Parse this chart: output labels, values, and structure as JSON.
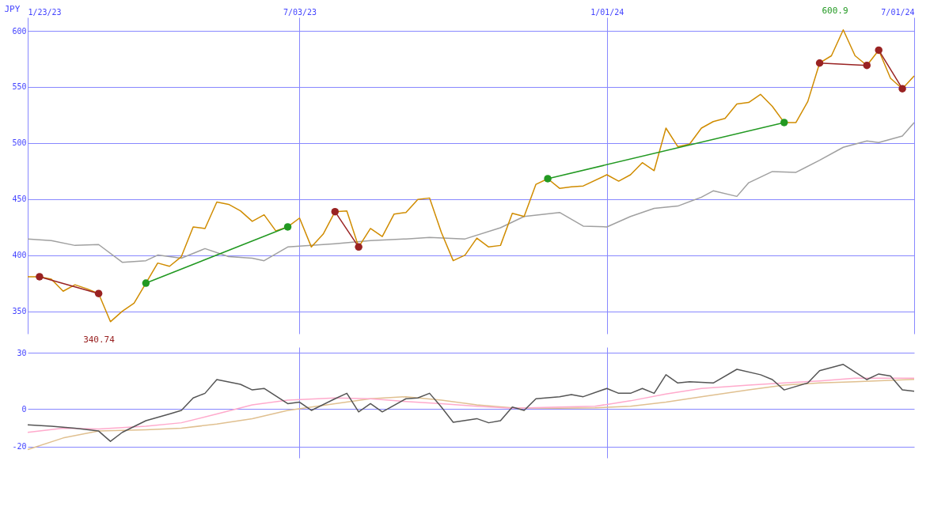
{
  "chart_data": [
    {
      "type": "line",
      "ylabel": "JPY",
      "xlim": [
        "2023-01-23",
        "2024-07-01"
      ],
      "ylim": [
        330,
        612
      ],
      "yticks": [
        350,
        400,
        450,
        500,
        550,
        600
      ],
      "xticks": [
        {
          "value": "2023-01-23",
          "label": "1/23/23"
        },
        {
          "value": "2023-07-03",
          "label": "7/03/23"
        },
        {
          "value": "2024-01-01",
          "label": "1/01/24"
        },
        {
          "value": "2024-07-01",
          "label": "7/01/24"
        }
      ],
      "grid": true,
      "annotations": [
        "600.9",
        "340.74"
      ],
      "series": [
        {
          "color": "#a0a0a0",
          "x": [
            "2023-01-23",
            "2023-02-06",
            "2023-02-20",
            "2023-03-06",
            "2023-03-20",
            "2023-04-03",
            "2023-04-10",
            "2023-04-24",
            "2023-05-08",
            "2023-05-22",
            "2023-06-05",
            "2023-06-12",
            "2023-06-26",
            "2023-07-10",
            "2023-07-24",
            "2023-08-14",
            "2023-09-04",
            "2023-09-18",
            "2023-10-09",
            "2023-10-30",
            "2023-11-13",
            "2023-12-04",
            "2023-12-18",
            "2024-01-01",
            "2024-01-15",
            "2024-01-29",
            "2024-02-12",
            "2024-02-26",
            "2024-03-04",
            "2024-03-18",
            "2024-03-25",
            "2024-04-08",
            "2024-04-22",
            "2024-05-06",
            "2024-05-20",
            "2024-06-03",
            "2024-06-10",
            "2024-06-24",
            "2024-07-01"
          ],
          "values": [
            414.5,
            413.0,
            408.7,
            409.5,
            393.7,
            395.1,
            400.1,
            397.3,
            405.9,
            398.7,
            397.3,
            395.1,
            407.3,
            408.7,
            410.2,
            413.0,
            414.5,
            415.9,
            414.5,
            424.5,
            434.5,
            438.1,
            425.9,
            425.2,
            434.5,
            441.7,
            443.8,
            451.7,
            457.4,
            452.4,
            464.6,
            474.6,
            473.9,
            484.7,
            496.2,
            501.9,
            500.4,
            506.2,
            518.3
          ]
        },
        {
          "color": "#d08c00",
          "x": [
            "2023-01-23",
            "2023-01-30",
            "2023-02-06",
            "2023-02-13",
            "2023-02-20",
            "2023-02-27",
            "2023-03-06",
            "2023-03-13",
            "2023-03-20",
            "2023-03-27",
            "2023-04-03",
            "2023-04-10",
            "2023-04-17",
            "2023-04-24",
            "2023-05-01",
            "2023-05-08",
            "2023-05-15",
            "2023-05-22",
            "2023-05-29",
            "2023-06-05",
            "2023-06-12",
            "2023-06-19",
            "2023-06-26",
            "2023-07-03",
            "2023-07-10",
            "2023-07-17",
            "2023-07-24",
            "2023-07-31",
            "2023-08-07",
            "2023-08-14",
            "2023-08-21",
            "2023-08-28",
            "2023-09-04",
            "2023-09-11",
            "2023-09-18",
            "2023-09-25",
            "2023-10-02",
            "2023-10-09",
            "2023-10-16",
            "2023-10-23",
            "2023-10-30",
            "2023-11-06",
            "2023-11-13",
            "2023-11-20",
            "2023-11-27",
            "2023-12-04",
            "2023-12-11",
            "2023-12-18",
            "2024-01-01",
            "2024-01-08",
            "2024-01-15",
            "2024-01-22",
            "2024-01-29",
            "2024-02-05",
            "2024-02-12",
            "2024-02-19",
            "2024-02-26",
            "2024-03-04",
            "2024-03-11",
            "2024-03-18",
            "2024-03-25",
            "2024-04-01",
            "2024-04-08",
            "2024-04-15",
            "2024-04-22",
            "2024-04-29",
            "2024-05-06",
            "2024-05-13",
            "2024-05-20",
            "2024-05-27",
            "2024-06-03",
            "2024-06-10",
            "2024-06-17",
            "2024-06-24",
            "2024-07-01"
          ],
          "values": [
            380.8,
            380.8,
            378.6,
            367.9,
            373.6,
            370.1,
            365.8,
            340.7,
            350.0,
            357.2,
            375.1,
            393.0,
            390.1,
            398.7,
            425.2,
            423.8,
            447.4,
            445.3,
            439.5,
            430.2,
            436.0,
            421.6,
            425.2,
            433.1,
            407.3,
            418.8,
            438.8,
            439.5,
            407.3,
            423.8,
            416.6,
            436.7,
            438.1,
            449.6,
            451.0,
            420.2,
            395.1,
            400.1,
            415.2,
            407.3,
            408.7,
            437.4,
            434.5,
            463.2,
            468.2,
            459.6,
            461.0,
            461.7,
            471.7,
            466.0,
            471.7,
            482.5,
            475.4,
            513.3,
            496.8,
            499.0,
            513.3,
            519.1,
            521.9,
            534.8,
            536.2,
            543.4,
            532.7,
            518.3,
            518.3,
            537.0,
            571.3,
            577.8,
            600.9,
            577.8,
            569.2,
            582.8,
            557.7,
            548.4,
            559.9
          ]
        },
        {
          "color": "#992222",
          "marker": "circle",
          "x": [
            "2023-01-30",
            "2023-03-06"
          ],
          "values": [
            380.8,
            365.8
          ]
        },
        {
          "color": "#229922",
          "marker": "circle",
          "x": [
            "2023-04-03",
            "2023-06-26"
          ],
          "values": [
            375.1,
            425.2
          ]
        },
        {
          "color": "#992222",
          "marker": "circle",
          "x": [
            "2023-07-24",
            "2023-08-07"
          ],
          "values": [
            438.8,
            407.3
          ]
        },
        {
          "color": "#229922",
          "marker": "circle",
          "x": [
            "2023-11-27",
            "2024-04-15"
          ],
          "values": [
            468.2,
            518.3
          ]
        },
        {
          "color": "#992222",
          "marker": "circle",
          "x": [
            "2024-05-06",
            "2024-06-03"
          ],
          "values": [
            571.3,
            569.2
          ]
        },
        {
          "color": "#992222",
          "marker": "circle",
          "x": [
            "2024-06-10",
            "2024-06-24"
          ],
          "values": [
            582.8,
            548.4
          ]
        }
      ]
    },
    {
      "type": "line",
      "xlim": [
        "2023-01-23",
        "2024-07-01"
      ],
      "ylim": [
        -26,
        33
      ],
      "yticks": [
        -20,
        0,
        30
      ],
      "tick_labels": "y",
      "grid": true,
      "xticks": [
        {
          "value": "2023-07-03",
          "label": null
        },
        {
          "value": "2024-01-01",
          "label": null
        }
      ],
      "series": [
        {
          "color": "#e0c090",
          "x": [
            "2023-01-23",
            "2023-02-13",
            "2023-03-06",
            "2023-04-03",
            "2023-04-24",
            "2023-05-15",
            "2023-06-05",
            "2023-06-26",
            "2023-07-24",
            "2023-08-14",
            "2023-09-04",
            "2023-09-25",
            "2023-10-16",
            "2023-11-06",
            "2023-12-04",
            "2023-12-25",
            "2024-01-15",
            "2024-02-05",
            "2024-02-26",
            "2024-03-25",
            "2024-04-15",
            "2024-05-06",
            "2024-05-27",
            "2024-07-01"
          ],
          "values": [
            -21.6,
            -15.4,
            -11.7,
            -11.0,
            -10.2,
            -8.0,
            -5.1,
            -0.7,
            2.9,
            5.5,
            6.6,
            4.8,
            2.2,
            0.7,
            0.4,
            0.7,
            1.5,
            3.7,
            6.6,
            10.2,
            12.8,
            13.9,
            14.6,
            15.8
          ]
        },
        {
          "color": "#ffaacc",
          "x": [
            "2023-01-23",
            "2023-02-13",
            "2023-03-06",
            "2023-04-03",
            "2023-04-24",
            "2023-05-15",
            "2023-06-05",
            "2023-06-26",
            "2023-07-24",
            "2023-08-14",
            "2023-09-04",
            "2023-09-25",
            "2023-10-16",
            "2023-11-06",
            "2023-12-04",
            "2023-12-25",
            "2024-01-15",
            "2024-02-05",
            "2024-02-26",
            "2024-03-25",
            "2024-04-15",
            "2024-05-06",
            "2024-05-27",
            "2024-07-01"
          ],
          "values": [
            -12.4,
            -10.2,
            -10.6,
            -9.1,
            -7.3,
            -2.6,
            2.2,
            4.8,
            5.9,
            5.5,
            4.0,
            2.9,
            1.5,
            0.4,
            1.1,
            1.5,
            4.4,
            8.0,
            11.0,
            12.8,
            13.9,
            15.0,
            16.5,
            16.5
          ]
        },
        {
          "color": "#555555",
          "x": [
            "2023-01-23",
            "2023-02-06",
            "2023-02-20",
            "2023-03-06",
            "2023-03-13",
            "2023-03-20",
            "2023-04-03",
            "2023-04-17",
            "2023-04-24",
            "2023-05-01",
            "2023-05-08",
            "2023-05-15",
            "2023-05-29",
            "2023-06-05",
            "2023-06-12",
            "2023-06-26",
            "2023-07-03",
            "2023-07-10",
            "2023-07-24",
            "2023-07-31",
            "2023-08-07",
            "2023-08-14",
            "2023-08-21",
            "2023-09-04",
            "2023-09-11",
            "2023-09-18",
            "2023-09-25",
            "2023-10-02",
            "2023-10-16",
            "2023-10-23",
            "2023-10-30",
            "2023-11-06",
            "2023-11-13",
            "2023-11-20",
            "2023-12-04",
            "2023-12-11",
            "2023-12-18",
            "2024-01-01",
            "2024-01-08",
            "2024-01-15",
            "2024-01-22",
            "2024-01-29",
            "2024-02-05",
            "2024-02-12",
            "2024-02-19",
            "2024-03-04",
            "2024-03-18",
            "2024-04-01",
            "2024-04-08",
            "2024-04-15",
            "2024-04-29",
            "2024-05-06",
            "2024-05-20",
            "2024-06-03",
            "2024-06-10",
            "2024-06-17",
            "2024-06-24",
            "2024-07-01"
          ],
          "values": [
            -8.4,
            -9.1,
            -10.2,
            -11.7,
            -17.2,
            -12.4,
            -6.2,
            -2.6,
            -0.7,
            5.9,
            8.4,
            15.7,
            13.2,
            10.2,
            11.0,
            2.9,
            3.7,
            -0.7,
            5.5,
            8.4,
            -1.5,
            2.9,
            -1.5,
            5.5,
            5.9,
            8.4,
            1.1,
            -7.0,
            -5.1,
            -7.3,
            -6.2,
            1.1,
            -0.7,
            5.5,
            6.6,
            7.7,
            6.6,
            11.0,
            8.4,
            8.4,
            11.0,
            8.4,
            18.3,
            13.9,
            14.6,
            13.9,
            21.2,
            18.3,
            15.7,
            10.2,
            13.9,
            20.5,
            23.8,
            15.7,
            18.7,
            17.6,
            10.2,
            9.5
          ]
        }
      ]
    }
  ]
}
